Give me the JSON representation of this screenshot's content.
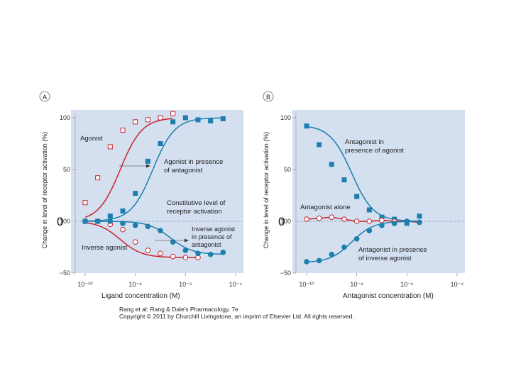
{
  "chart_data": [
    {
      "panel_label": "A",
      "type": "line",
      "xscale": "log",
      "xlim": [
        1e-10,
        0.0001
      ],
      "ylim": [
        -50,
        100
      ],
      "x_ticks": [
        1e-10,
        1e-08,
        1e-06,
        0.0001
      ],
      "x_tick_labels": [
        "10⁻¹⁰",
        "10⁻⁸",
        "10⁻⁶",
        "10⁻⁴"
      ],
      "y_ticks": [
        100,
        50,
        -50
      ],
      "y_tick_labels": [
        "100",
        "50",
        "−50"
      ],
      "y_zero_label": "100",
      "baseline": 0,
      "xlabel": "Ligand concentration (M)",
      "ylabel": "Change in level of receptor activation (%)",
      "series": [
        {
          "name": "Agonist",
          "marker": "open-square",
          "color": "#c8232c",
          "curve": {
            "ec50_log": -8.6,
            "bottom": 0,
            "top": 100,
            "hill": 1
          },
          "x_log": [
            -10,
            -9.5,
            -9,
            -8.5,
            -8,
            -7.5,
            -7,
            -6.5
          ],
          "y": [
            18,
            42,
            72,
            88,
            96,
            98,
            100,
            104
          ]
        },
        {
          "name": "Agonist in presence of antagonist",
          "marker": "filled-square",
          "color": "#1c7fae",
          "curve": {
            "ec50_log": -7.3,
            "bottom": 0,
            "top": 100,
            "hill": 1
          },
          "x_log": [
            -10,
            -9.5,
            -9,
            -8.5,
            -8,
            -7.5,
            -7,
            -6.5,
            -6,
            -5.5,
            -5,
            -4.5
          ],
          "y": [
            0,
            0,
            5,
            10,
            27,
            58,
            75,
            96,
            100,
            98,
            97,
            99
          ]
        },
        {
          "name": "Inverse agonist",
          "marker": "open-circle",
          "color": "#c8232c",
          "curve": {
            "ec50_log": -8.6,
            "bottom": 0,
            "top": -35,
            "hill": 1
          },
          "x_log": [
            -10,
            -9.5,
            -9,
            -8.5,
            -8,
            -7.5,
            -7,
            -6.5,
            -6,
            -5.5
          ],
          "y": [
            0,
            0,
            -3,
            -8,
            -20,
            -28,
            -31,
            -34,
            -35,
            -35
          ]
        },
        {
          "name": "Inverse agonist in presence of antagonist",
          "marker": "filled-circle",
          "color": "#1c7fae",
          "curve": {
            "ec50_log": -6.6,
            "bottom": 0,
            "top": -32,
            "hill": 1
          },
          "x_log": [
            -10,
            -9.5,
            -9,
            -8.5,
            -8,
            -7.5,
            -7,
            -6.5,
            -6,
            -5.5,
            -5,
            -4.5
          ],
          "y": [
            0,
            0,
            0,
            -2,
            -4,
            -5,
            -9,
            -20,
            -28,
            -31,
            -32,
            -30
          ]
        }
      ],
      "annotations": [
        "Agonist",
        "Agonist in presence of antagonist",
        "Constitutive level of receptor activation",
        "Inverse agonist in presence of antagonist",
        "Inverse agonist"
      ]
    },
    {
      "panel_label": "B",
      "type": "line",
      "xscale": "log",
      "xlim": [
        1e-10,
        0.0001
      ],
      "ylim": [
        -50,
        100
      ],
      "x_ticks": [
        1e-10,
        1e-08,
        1e-06,
        0.0001
      ],
      "x_tick_labels": [
        "10⁻¹⁰",
        "10⁻⁸",
        "10⁻⁶",
        "10⁻⁴"
      ],
      "y_ticks": [
        100,
        50,
        -50
      ],
      "y_tick_labels": [
        "100",
        "50",
        "−50"
      ],
      "y_zero_label": "100",
      "baseline": 0,
      "xlabel": "Antagonist concentration (M)",
      "ylabel": "Change in level of receptor activation (%)",
      "series": [
        {
          "name": "Antagonist in presence of agonist",
          "marker": "filled-square",
          "color": "#1c7fae",
          "curve": {
            "ec50_log": -8.2,
            "bottom": 93,
            "top": 0,
            "hill": 1
          },
          "x_log": [
            -10,
            -9.5,
            -9,
            -8.5,
            -8,
            -7.5,
            -7,
            -6.5,
            -6,
            -5.5
          ],
          "y": [
            92,
            74,
            55,
            40,
            24,
            11,
            4,
            2,
            -2,
            5
          ]
        },
        {
          "name": "Antagonist alone",
          "marker": "open-circle",
          "color": "#c8232c",
          "x_log": [
            -10,
            -9.5,
            -9,
            -8.5,
            -8,
            -7.5,
            -7,
            -6.5,
            -6,
            -5.5
          ],
          "y": [
            2,
            3,
            4,
            2,
            0,
            0,
            1,
            0,
            0,
            -1
          ]
        },
        {
          "name": "Antagonist in presence of inverse agonist",
          "marker": "filled-circle",
          "color": "#1c7fae",
          "curve": {
            "ec50_log": -8.2,
            "bottom": -40,
            "top": 0,
            "hill": 1
          },
          "x_log": [
            -10,
            -9.5,
            -9,
            -8.5,
            -8,
            -7.5,
            -7,
            -6.5,
            -6,
            -5.5
          ],
          "y": [
            -39,
            -38,
            -32,
            -25,
            -17,
            -9,
            -4,
            -2,
            0,
            -1
          ]
        }
      ],
      "annotations": [
        "Antagonist in presence of agonist",
        "Antagonist alone",
        "Antagonist in presence of inverse agonist"
      ]
    }
  ],
  "caption": {
    "line1": "Rang et al: Rang & Dale's Pharmacology, 7e",
    "line2": "Copyright © 2011 by Churchill Livingstone, an imprint of Elsevier Ltd. All rights reserved."
  },
  "overlay_zeros": [
    "0",
    "0"
  ],
  "colors": {
    "panel_bg": "#d4dff0",
    "red": "#c8232c",
    "blue": "#1c7fae",
    "baseline": "#8aa0c0"
  }
}
